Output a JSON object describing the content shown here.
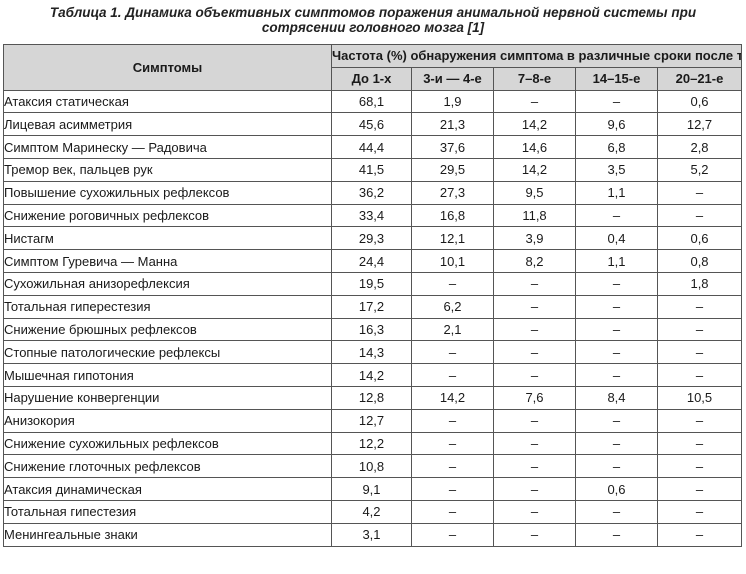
{
  "caption": {
    "line1": "Таблица 1. Динамика объективных симптомов поражения анимальной нервной системы при",
    "line2": "сотрясении головного мозга [1]"
  },
  "header": {
    "symptoms": "Симптомы",
    "frequency": "Частота (%) обнаружения симптома в различные сроки после травмы, сут.",
    "periods": [
      "До 1-х",
      "3-и — 4-е",
      "7–8-е",
      "14–15-е",
      "20–21-е"
    ]
  },
  "rows": [
    {
      "name": "Атаксия статическая",
      "values": [
        "68,1",
        "1,9",
        "–",
        "–",
        "0,6"
      ]
    },
    {
      "name": "Лицевая асимметрия",
      "values": [
        "45,6",
        "21,3",
        "14,2",
        "9,6",
        "12,7"
      ]
    },
    {
      "name": "Симптом Маринеску — Радовича",
      "values": [
        "44,4",
        "37,6",
        "14,6",
        "6,8",
        "2,8"
      ]
    },
    {
      "name": "Тремор век, пальцев рук",
      "values": [
        "41,5",
        "29,5",
        "14,2",
        "3,5",
        "5,2"
      ]
    },
    {
      "name": "Повышение сухожильных рефлексов",
      "values": [
        "36,2",
        "27,3",
        "9,5",
        "1,1",
        "–"
      ]
    },
    {
      "name": "Снижение роговичных рефлексов",
      "values": [
        "33,4",
        "16,8",
        "11,8",
        "–",
        "–"
      ]
    },
    {
      "name": "Нистагм",
      "values": [
        "29,3",
        "12,1",
        "3,9",
        "0,4",
        "0,6"
      ]
    },
    {
      "name": "Симптом Гуревича — Манна",
      "values": [
        "24,4",
        "10,1",
        "8,2",
        "1,1",
        "0,8"
      ]
    },
    {
      "name": "Сухожильная анизорефлексия",
      "values": [
        "19,5",
        "–",
        "–",
        "–",
        "1,8"
      ]
    },
    {
      "name": "Тотальная гиперестезия",
      "values": [
        "17,2",
        "6,2",
        "–",
        "–",
        "–"
      ]
    },
    {
      "name": "Снижение брюшных рефлексов",
      "values": [
        "16,3",
        "2,1",
        "–",
        "–",
        "–"
      ]
    },
    {
      "name": "Стопные патологические рефлексы",
      "values": [
        "14,3",
        "–",
        "–",
        "–",
        "–"
      ]
    },
    {
      "name": "Мышечная гипотония",
      "values": [
        "14,2",
        "–",
        "–",
        "–",
        "–"
      ]
    },
    {
      "name": "Нарушение конвергенции",
      "values": [
        "12,8",
        "14,2",
        "7,6",
        "8,4",
        "10,5"
      ]
    },
    {
      "name": "Анизокория",
      "values": [
        "12,7",
        "–",
        "–",
        "–",
        "–"
      ]
    },
    {
      "name": "Снижение сухожильных рефлексов",
      "values": [
        "12,2",
        "–",
        "–",
        "–",
        "–"
      ]
    },
    {
      "name": "Снижение глоточных рефлексов",
      "values": [
        "10,8",
        "–",
        "–",
        "–",
        "–"
      ]
    },
    {
      "name": "Атаксия динамическая",
      "values": [
        "9,1",
        "–",
        "–",
        "0,6",
        "–"
      ]
    },
    {
      "name": "Тотальная гипестезия",
      "values": [
        "4,2",
        "–",
        "–",
        "–",
        "–"
      ]
    },
    {
      "name": "Менингеальные знаки",
      "values": [
        "3,1",
        "–",
        "–",
        "–",
        "–"
      ]
    }
  ]
}
